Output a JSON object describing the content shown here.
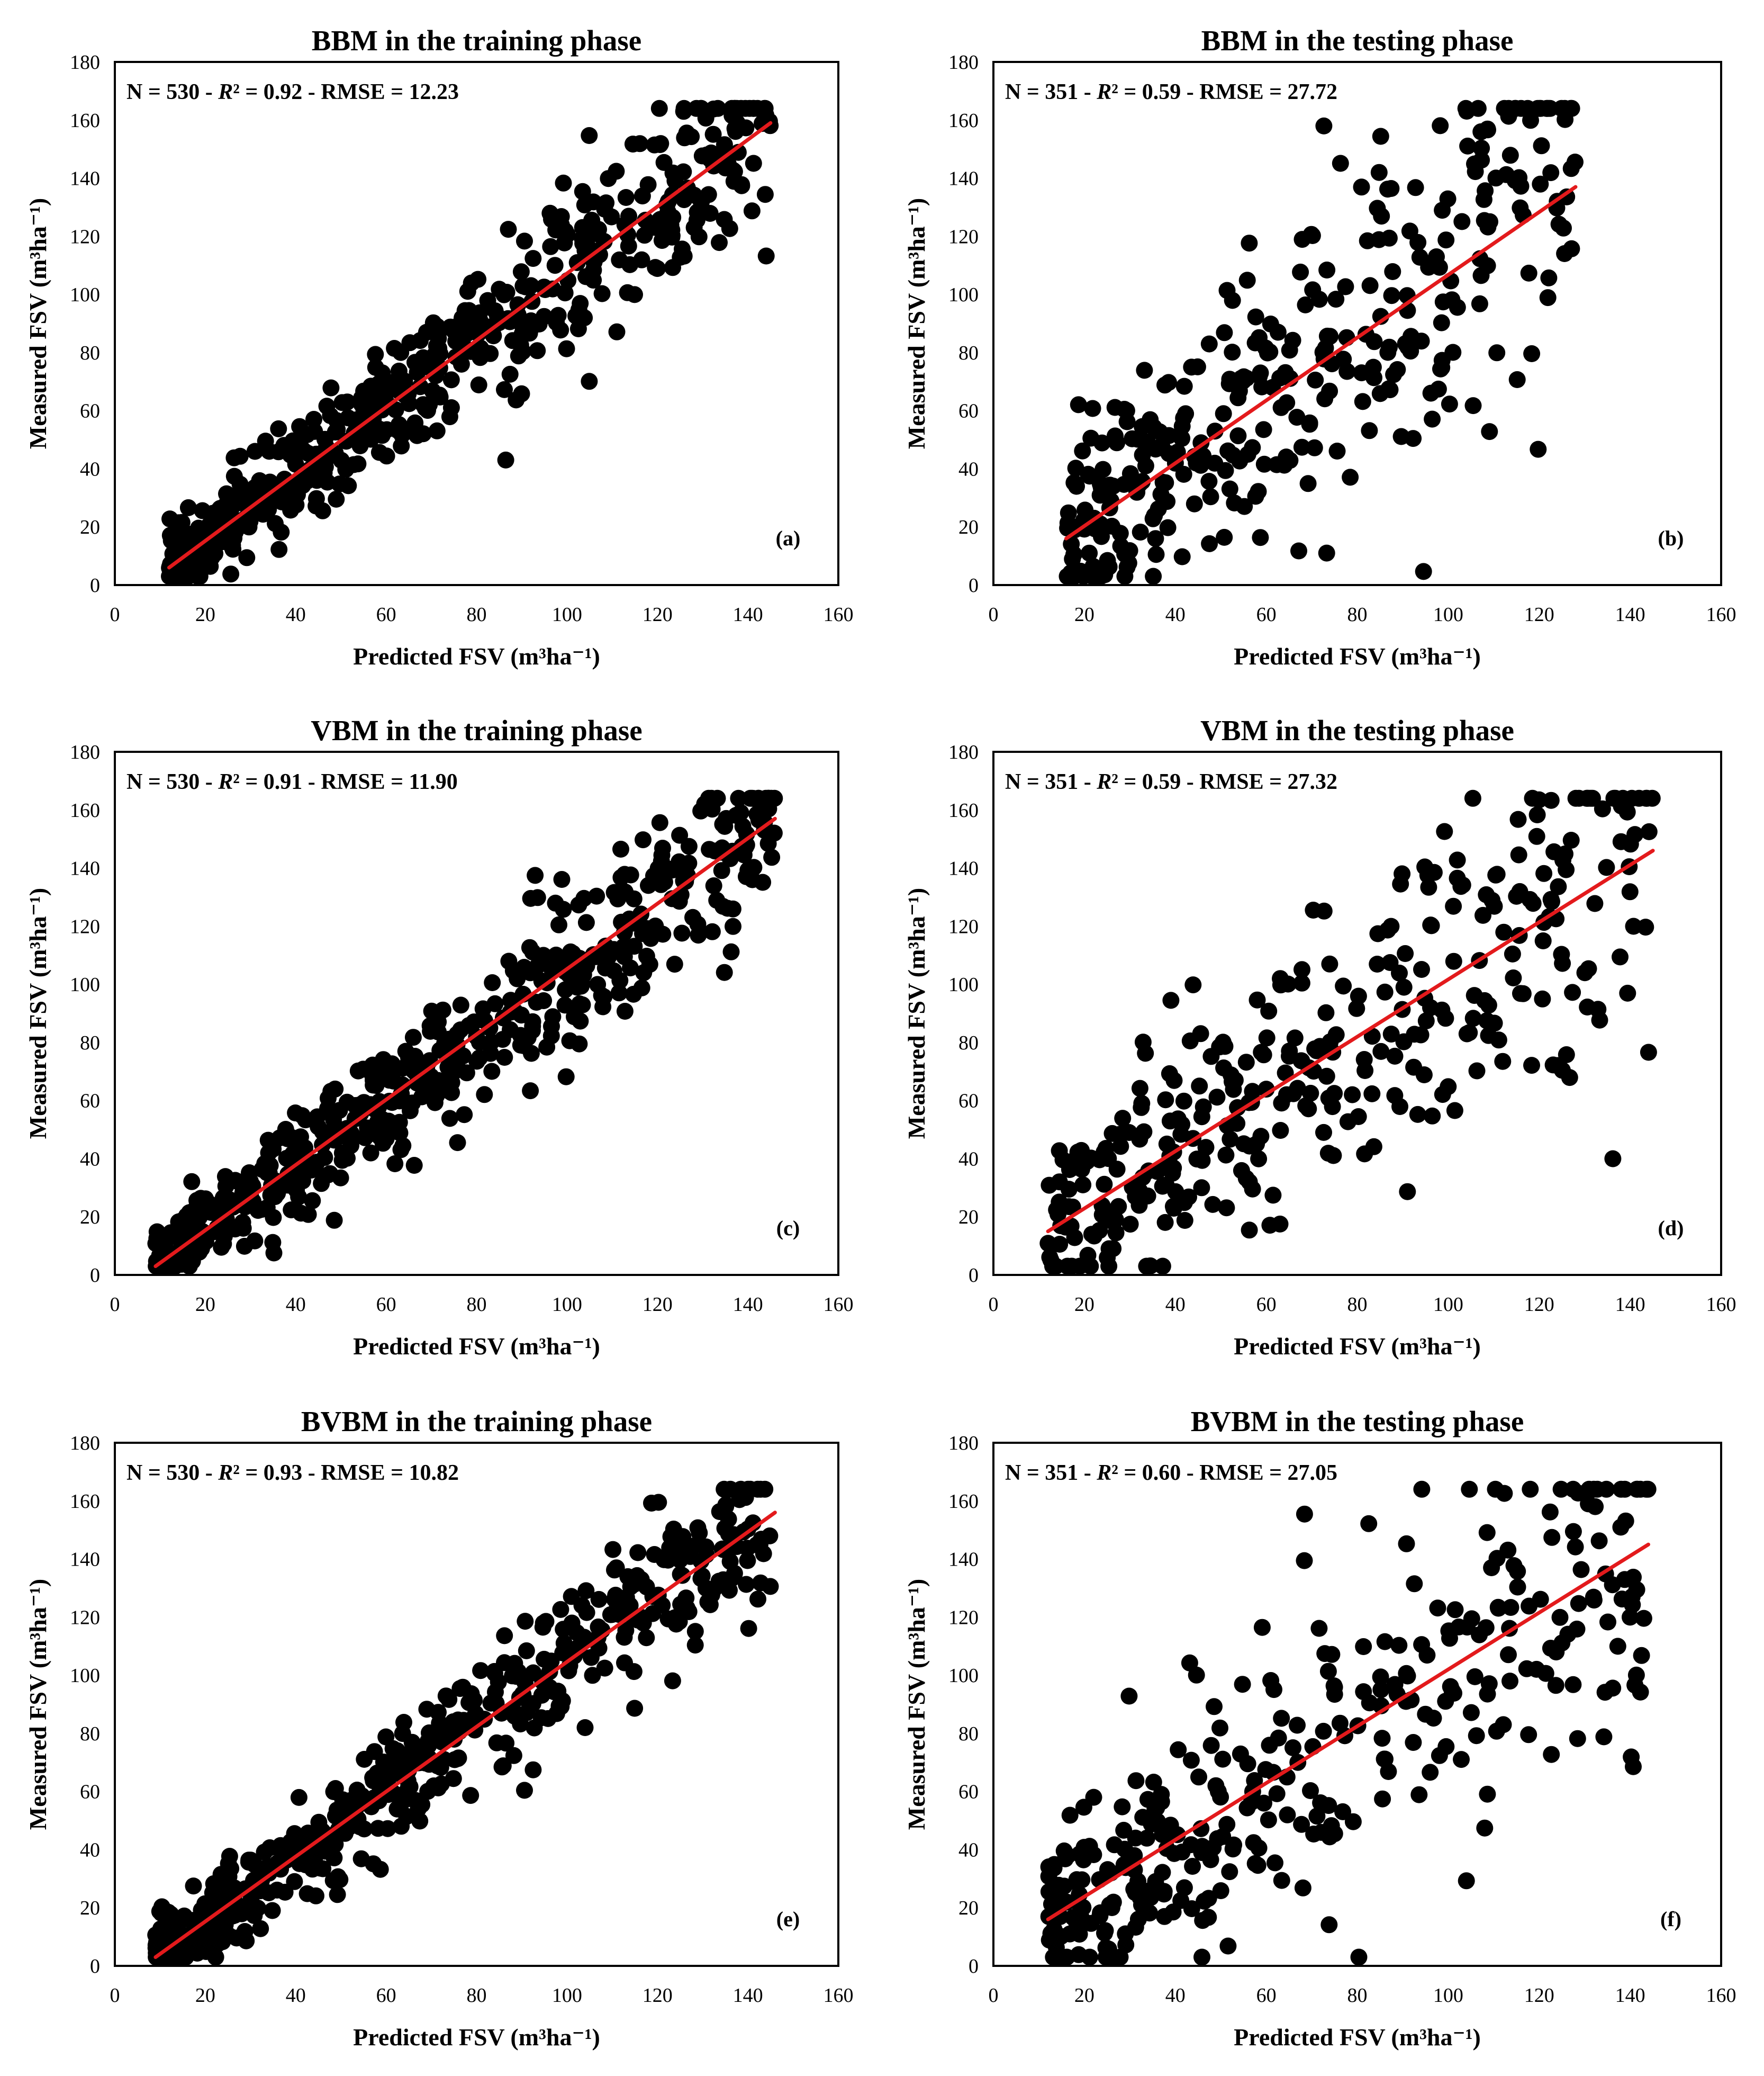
{
  "figure": {
    "accent_color": "#e31a1c",
    "point_color": "#000000"
  },
  "chart_data": [
    {
      "type": "scatter",
      "title": "BBM in the training phase",
      "xlabel": "Predicted FSV (m³ha⁻¹)",
      "ylabel": "Measured FSV (m³ha⁻¹)",
      "xlim": [
        0,
        160
      ],
      "ylim": [
        0,
        180
      ],
      "xticks": [
        "0",
        "20",
        "40",
        "60",
        "80",
        "100",
        "120",
        "140",
        "160"
      ],
      "yticks": [
        "0",
        "20",
        "40",
        "60",
        "80",
        "100",
        "120",
        "140",
        "160",
        "180"
      ],
      "stats": {
        "n": "N = 530",
        "r2_label": "R",
        "r2_value": "² = 0.92",
        "rmse": "RMSE = 12.23",
        "sep": " - "
      },
      "panel_label": "(a)",
      "n_points": 530,
      "x_range": [
        12,
        145
      ],
      "noise_sd": 12.23,
      "seed": 11,
      "fit_line": {
        "x": [
          12,
          145
        ],
        "y": [
          6,
          159
        ]
      }
    },
    {
      "type": "scatter",
      "title": "BBM in the testing phase",
      "xlabel": "Predicted FSV (m³ha⁻¹)",
      "ylabel": "Measured FSV (m³ha⁻¹)",
      "xlim": [
        0,
        160
      ],
      "ylim": [
        0,
        180
      ],
      "xticks": [
        "0",
        "20",
        "40",
        "60",
        "80",
        "100",
        "120",
        "140",
        "160"
      ],
      "yticks": [
        "0",
        "20",
        "40",
        "60",
        "80",
        "100",
        "120",
        "140",
        "160",
        "180"
      ],
      "stats": {
        "n": "N = 351",
        "r2_label": "R",
        "r2_value": "² = 0.59",
        "rmse": "RMSE = 27.72",
        "sep": " - "
      },
      "panel_label": "(b)",
      "n_points": 351,
      "x_range": [
        16,
        128
      ],
      "noise_sd": 27.72,
      "seed": 23,
      "fit_line": {
        "x": [
          16,
          128
        ],
        "y": [
          16,
          137
        ]
      }
    },
    {
      "type": "scatter",
      "title": "VBM in the training phase",
      "xlabel": "Predicted FSV (m³ha⁻¹)",
      "ylabel": "Measured FSV (m³ha⁻¹)",
      "xlim": [
        0,
        160
      ],
      "ylim": [
        0,
        180
      ],
      "xticks": [
        "0",
        "20",
        "40",
        "60",
        "80",
        "100",
        "120",
        "140",
        "160"
      ],
      "yticks": [
        "0",
        "20",
        "40",
        "60",
        "80",
        "100",
        "120",
        "140",
        "160",
        "180"
      ],
      "stats": {
        "n": "N = 530",
        "r2_label": "R",
        "r2_value": "² = 0.91",
        "rmse": "RMSE = 11.90",
        "sep": " - "
      },
      "panel_label": "(c)",
      "n_points": 530,
      "x_range": [
        9,
        146
      ],
      "noise_sd": 11.9,
      "seed": 37,
      "fit_line": {
        "x": [
          9,
          146
        ],
        "y": [
          3,
          157
        ]
      }
    },
    {
      "type": "scatter",
      "title": "VBM in the testing phase",
      "xlabel": "Predicted FSV (m³ha⁻¹)",
      "ylabel": "Measured FSV (m³ha⁻¹)",
      "xlim": [
        0,
        160
      ],
      "ylim": [
        0,
        180
      ],
      "xticks": [
        "0",
        "20",
        "40",
        "60",
        "80",
        "100",
        "120",
        "140",
        "160"
      ],
      "yticks": [
        "0",
        "20",
        "40",
        "60",
        "80",
        "100",
        "120",
        "140",
        "160",
        "180"
      ],
      "stats": {
        "n": "N = 351",
        "r2_label": "R",
        "r2_value": "² = 0.59",
        "rmse": "RMSE = 27.32",
        "sep": " - "
      },
      "panel_label": "(d)",
      "n_points": 351,
      "x_range": [
        12,
        145
      ],
      "noise_sd": 27.32,
      "seed": 41,
      "fit_line": {
        "x": [
          12,
          145
        ],
        "y": [
          15,
          146
        ]
      }
    },
    {
      "type": "scatter",
      "title": "BVBM in the training phase",
      "xlabel": "Predicted FSV (m³ha⁻¹)",
      "ylabel": "Measured FSV (m³ha⁻¹)",
      "xlim": [
        0,
        160
      ],
      "ylim": [
        0,
        180
      ],
      "xticks": [
        "0",
        "20",
        "40",
        "60",
        "80",
        "100",
        "120",
        "140",
        "160"
      ],
      "yticks": [
        "0",
        "20",
        "40",
        "60",
        "80",
        "100",
        "120",
        "140",
        "160",
        "180"
      ],
      "stats": {
        "n": "N = 530",
        "r2_label": "R",
        "r2_value": "² = 0.93",
        "rmse": "RMSE = 10.82",
        "sep": " - "
      },
      "panel_label": "(e)",
      "n_points": 530,
      "x_range": [
        9,
        146
      ],
      "noise_sd": 10.82,
      "seed": 53,
      "fit_line": {
        "x": [
          9,
          146
        ],
        "y": [
          3,
          156
        ]
      }
    },
    {
      "type": "scatter",
      "title": "BVBM in the testing phase",
      "xlabel": "Predicted FSV (m³ha⁻¹)",
      "ylabel": "Measured FSV (m³ha⁻¹)",
      "xlim": [
        0,
        160
      ],
      "ylim": [
        0,
        180
      ],
      "xticks": [
        "0",
        "20",
        "40",
        "60",
        "80",
        "100",
        "120",
        "140",
        "160"
      ],
      "yticks": [
        "0",
        "20",
        "40",
        "60",
        "80",
        "100",
        "120",
        "140",
        "160",
        "180"
      ],
      "stats": {
        "n": "N = 351",
        "r2_label": "R",
        "r2_value": "² = 0.60",
        "rmse": "RMSE = 27.05",
        "sep": " - "
      },
      "panel_label": "(f)",
      "n_points": 351,
      "x_range": [
        12,
        144
      ],
      "noise_sd": 27.05,
      "seed": 67,
      "fit_line": {
        "x": [
          12,
          144
        ],
        "y": [
          16,
          145
        ]
      }
    }
  ]
}
